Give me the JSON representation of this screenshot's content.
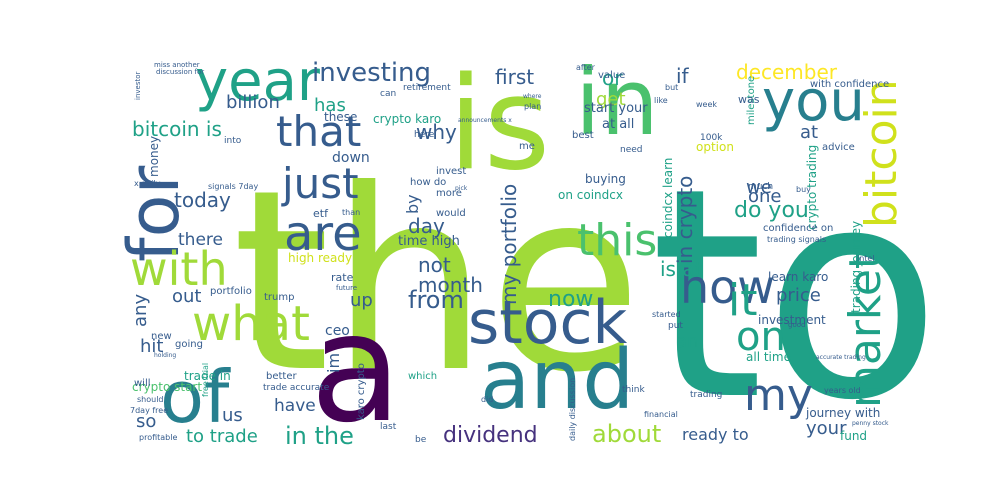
{
  "palette": {
    "lime": "#a0da39",
    "green": "#4ac16d",
    "teal": "#1fa187",
    "cyan": "#277f8e",
    "slate": "#365c8d",
    "indigo": "#46327e",
    "purple": "#440154",
    "yellow": "#fde725",
    "yellowgreen": "#d0e11c"
  },
  "words": [
    {
      "text": "the",
      "color": "lime"
    },
    {
      "text": "to",
      "color": "teal"
    },
    {
      "text": "is",
      "color": "lime"
    },
    {
      "text": "in",
      "color": "green"
    },
    {
      "text": "a",
      "color": "purple"
    },
    {
      "text": "and",
      "color": "cyan"
    },
    {
      "text": "for",
      "color": "slate"
    },
    {
      "text": "year",
      "color": "teal"
    },
    {
      "text": "of",
      "color": "cyan"
    },
    {
      "text": "stock",
      "color": "slate"
    },
    {
      "text": "you",
      "color": "cyan"
    },
    {
      "text": "bitcoin",
      "color": "yellowgreen"
    },
    {
      "text": "market",
      "color": "teal"
    },
    {
      "text": "with",
      "color": "lime"
    },
    {
      "text": "what",
      "color": "lime"
    },
    {
      "text": "are",
      "color": "slate"
    },
    {
      "text": "that",
      "color": "slate"
    },
    {
      "text": "just",
      "color": "slate"
    },
    {
      "text": "this",
      "color": "green"
    },
    {
      "text": "how",
      "color": "slate"
    },
    {
      "text": "it",
      "color": "teal"
    },
    {
      "text": "on",
      "color": "teal"
    },
    {
      "text": "my",
      "color": "slate"
    },
    {
      "text": "investing",
      "color": "slate"
    },
    {
      "text": "dividend",
      "color": "indigo"
    },
    {
      "text": "about",
      "color": "lime"
    },
    {
      "text": "in the",
      "color": "teal"
    },
    {
      "text": "my portfolio",
      "color": "slate"
    },
    {
      "text": "from",
      "color": "slate"
    },
    {
      "text": "december",
      "color": "yellow"
    },
    {
      "text": "first",
      "color": "slate"
    },
    {
      "text": "or",
      "color": "teal"
    },
    {
      "text": "if",
      "color": "slate"
    },
    {
      "text": "get",
      "color": "lime"
    },
    {
      "text": "billion",
      "color": "slate"
    },
    {
      "text": "has",
      "color": "teal"
    },
    {
      "text": "why",
      "color": "slate"
    },
    {
      "text": "bitcoin is",
      "color": "teal"
    },
    {
      "text": "today",
      "color": "slate"
    },
    {
      "text": "there",
      "color": "slate"
    },
    {
      "text": "not",
      "color": "slate"
    },
    {
      "text": "month",
      "color": "slate"
    },
    {
      "text": "day",
      "color": "slate"
    },
    {
      "text": "now",
      "color": "teal"
    },
    {
      "text": "is at",
      "color": "teal"
    },
    {
      "text": "in crypto",
      "color": "slate"
    },
    {
      "text": "do you",
      "color": "teal"
    },
    {
      "text": "we",
      "color": "slate"
    },
    {
      "text": "one",
      "color": "slate"
    },
    {
      "text": "price",
      "color": "slate"
    },
    {
      "text": "at",
      "color": "slate"
    },
    {
      "text": "an",
      "color": "teal"
    },
    {
      "text": "any",
      "color": "slate"
    },
    {
      "text": "out",
      "color": "slate"
    },
    {
      "text": "up",
      "color": "slate"
    },
    {
      "text": "hit",
      "color": "slate"
    },
    {
      "text": "so",
      "color": "slate"
    },
    {
      "text": "have",
      "color": "slate"
    },
    {
      "text": "us",
      "color": "slate"
    },
    {
      "text": "im",
      "color": "slate"
    },
    {
      "text": "to trade",
      "color": "teal"
    },
    {
      "text": "ready to",
      "color": "slate"
    },
    {
      "text": "your",
      "color": "slate"
    },
    {
      "text": "by",
      "color": "slate"
    },
    {
      "text": "time high",
      "color": "slate"
    },
    {
      "text": "high ready",
      "color": "yellowgreen"
    },
    {
      "text": "etf",
      "color": "slate"
    },
    {
      "text": "start your",
      "color": "slate"
    },
    {
      "text": "at all",
      "color": "slate"
    },
    {
      "text": "crypto karo",
      "color": "teal"
    },
    {
      "text": "on coindcx",
      "color": "teal"
    },
    {
      "text": "buying",
      "color": "slate"
    },
    {
      "text": "coindcx learn",
      "color": "teal"
    },
    {
      "text": "crypto trading",
      "color": "teal"
    },
    {
      "text": "learn karo",
      "color": "slate"
    },
    {
      "text": "investment",
      "color": "slate"
    },
    {
      "text": "all time",
      "color": "teal"
    },
    {
      "text": "journey with",
      "color": "slate"
    },
    {
      "text": "fund",
      "color": "teal"
    },
    {
      "text": "trading journey",
      "color": "teal"
    },
    {
      "text": "confidence on",
      "color": "slate"
    },
    {
      "text": "trading signals",
      "color": "slate"
    },
    {
      "text": "much",
      "color": "slate"
    },
    {
      "text": "buy",
      "color": "slate"
    },
    {
      "text": "advice",
      "color": "slate"
    },
    {
      "text": "with confidence",
      "color": "slate"
    },
    {
      "text": "milestone",
      "color": "teal"
    },
    {
      "text": "option",
      "color": "yellowgreen"
    },
    {
      "text": "100k",
      "color": "slate"
    },
    {
      "text": "week",
      "color": "slate"
    },
    {
      "text": "was",
      "color": "slate"
    },
    {
      "text": "like",
      "color": "slate"
    },
    {
      "text": "but",
      "color": "slate"
    },
    {
      "text": "value",
      "color": "slate"
    },
    {
      "text": "after",
      "color": "slate"
    },
    {
      "text": "best",
      "color": "slate"
    },
    {
      "text": "need",
      "color": "slate"
    },
    {
      "text": "me",
      "color": "slate"
    },
    {
      "text": "retirement",
      "color": "slate"
    },
    {
      "text": "these",
      "color": "slate"
    },
    {
      "text": "can",
      "color": "slate"
    },
    {
      "text": "here",
      "color": "slate"
    },
    {
      "text": "money",
      "color": "slate"
    },
    {
      "text": "down",
      "color": "slate"
    },
    {
      "text": "invest",
      "color": "slate"
    },
    {
      "text": "how do",
      "color": "slate"
    },
    {
      "text": "more",
      "color": "slate"
    },
    {
      "text": "would",
      "color": "slate"
    },
    {
      "text": "than",
      "color": "slate"
    },
    {
      "text": "ceo",
      "color": "slate"
    },
    {
      "text": "trade in",
      "color": "teal"
    },
    {
      "text": "portfolio",
      "color": "slate"
    },
    {
      "text": "rate",
      "color": "slate"
    },
    {
      "text": "trump",
      "color": "slate"
    },
    {
      "text": "new",
      "color": "slate"
    },
    {
      "text": "going",
      "color": "slate"
    },
    {
      "text": "crypto start",
      "color": "green"
    },
    {
      "text": "better",
      "color": "slate"
    },
    {
      "text": "which",
      "color": "teal"
    },
    {
      "text": "trade accurate",
      "color": "slate"
    },
    {
      "text": "karo crypto",
      "color": "slate"
    },
    {
      "text": "will",
      "color": "slate"
    },
    {
      "text": "should",
      "color": "slate"
    },
    {
      "text": "7day free",
      "color": "slate"
    },
    {
      "text": "profitable",
      "color": "slate"
    },
    {
      "text": "free trial",
      "color": "teal"
    },
    {
      "text": "last",
      "color": "slate"
    },
    {
      "text": "be",
      "color": "slate"
    },
    {
      "text": "did",
      "color": "slate"
    },
    {
      "text": "daily discussion",
      "color": "slate"
    },
    {
      "text": "financial",
      "color": "slate"
    },
    {
      "text": "think",
      "color": "slate"
    },
    {
      "text": "trading",
      "color": "slate"
    },
    {
      "text": "years old",
      "color": "slate"
    },
    {
      "text": "put",
      "color": "slate"
    },
    {
      "text": "started",
      "color": "slate"
    },
    {
      "text": "good",
      "color": "slate"
    },
    {
      "text": "intel",
      "color": "slate"
    },
    {
      "text": "signals 7day",
      "color": "slate"
    },
    {
      "text": "x daily",
      "color": "slate"
    },
    {
      "text": "into",
      "color": "slate"
    },
    {
      "text": "investor",
      "color": "slate"
    },
    {
      "text": "miss another",
      "color": "slate"
    },
    {
      "text": "discussion for",
      "color": "slate"
    },
    {
      "text": "pick",
      "color": "slate"
    },
    {
      "text": "where",
      "color": "slate"
    },
    {
      "text": "plan",
      "color": "slate"
    },
    {
      "text": "penny stock",
      "color": "slate"
    },
    {
      "text": "accurate trading",
      "color": "slate"
    },
    {
      "text": "holding",
      "color": "slate"
    },
    {
      "text": "future",
      "color": "slate"
    },
    {
      "text": "announcements x",
      "color": "slate"
    }
  ]
}
